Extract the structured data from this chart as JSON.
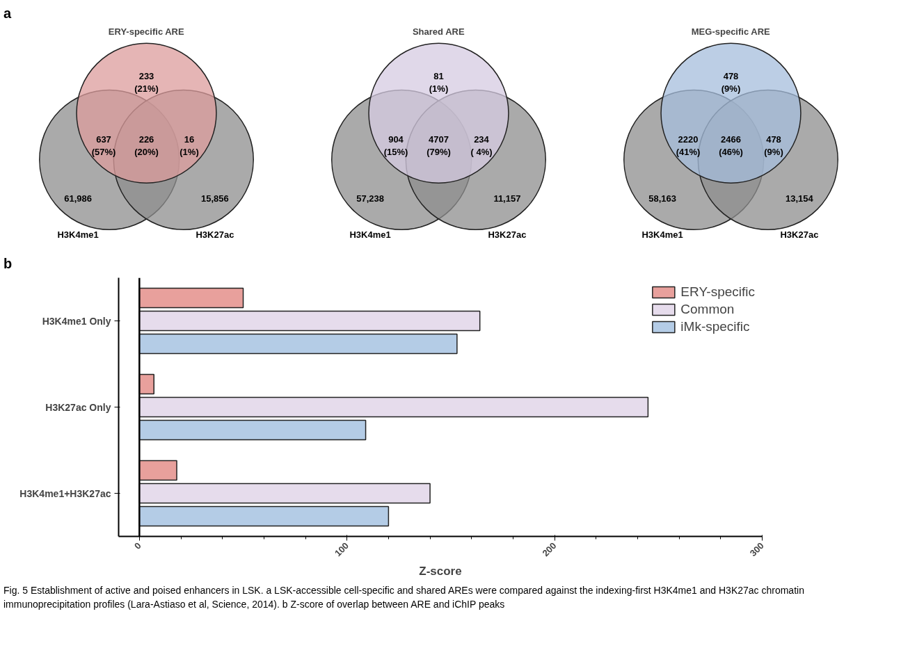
{
  "chart_data": [
    {
      "type": "other",
      "title": "ERY-specific ARE",
      "categories": [
        null,
        "H3K4me1",
        "H3K27ac"
      ],
      "colors": [
        "#dc9c9c",
        "#8e8e8e",
        "#8e8e8e"
      ],
      "annotations": [
        "233\n(21%)",
        "637\n(57%)",
        "226\n(20%)",
        "16\n(1%)",
        "61,986",
        "15,856",
        "a"
      ]
    },
    {
      "type": "other",
      "title": "Shared ARE",
      "categories": [
        null,
        "H3K4me1",
        "H3K27ac"
      ],
      "colors": [
        "#d6cbe2",
        "#8e8e8e",
        "#8e8e8e"
      ],
      "annotations": [
        "81\n(1%)",
        "904\n(15%)",
        "4707\n(79%)",
        "234\n( 4%)",
        "57,238",
        "11,157"
      ]
    },
    {
      "type": "other",
      "title": "MEG-specific ARE",
      "categories": [
        null,
        "H3K4me1",
        "H3K27ac"
      ],
      "colors": [
        "#a6bedc",
        "#8e8e8e",
        "#8e8e8e"
      ],
      "annotations": [
        "478\n(9%)",
        "2220\n(41%)",
        "2466\n(46%)",
        "478\n(9%)",
        "58,163",
        "13,154"
      ]
    },
    {
      "type": "bar",
      "orientation": "horizontal",
      "xlabel": "Z-score",
      "categories": [
        "H3K4me1 Only",
        "H3K27ac Only",
        "H3K4me1+H3K27ac"
      ],
      "series": [
        {
          "name": "ERY-specific",
          "color": "#e8a09c",
          "values": [
            50,
            7,
            18
          ]
        },
        {
          "name": "Common",
          "color": "#e6dcec",
          "values": [
            164,
            245,
            140
          ]
        },
        {
          "name": "iMk-specific",
          "color": "#b4cce6",
          "values": [
            153,
            109,
            120
          ]
        }
      ],
      "xlim": [
        -10,
        300
      ],
      "xticks": [
        0,
        100,
        200,
        300
      ],
      "grid": false,
      "legend": "top right",
      "ref_lines": [
        {
          "axis": "x",
          "value": 0
        }
      ],
      "annotations": [
        "b",
        "Fig. 5  Establishment of active and poised enhancers in LSK. a LSK-accessible cell-specific and shared AREs were compared against the indexing-first H3K4me1 and H3K27ac chromatin immunoprecipitation profiles (Lara-Astiaso et al, Science, 2014). b Z-score of overlap between ARE and iChIP peaks"
      ]
    }
  ]
}
